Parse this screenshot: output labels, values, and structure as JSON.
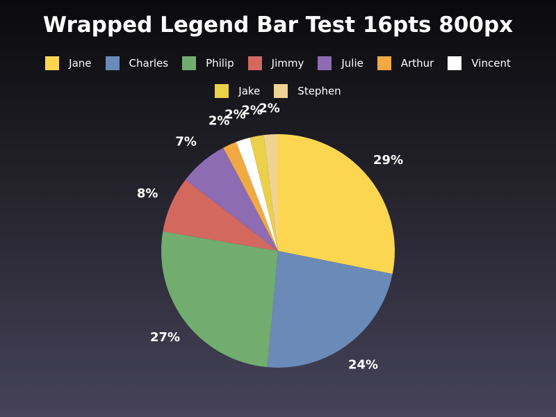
{
  "chart_data": {
    "type": "pie",
    "title": "Wrapped Legend Bar Test 16pts 800px",
    "legend_position": "top",
    "slices": [
      {
        "name": "Jane",
        "value": 29,
        "label": "29%",
        "color": "#fcd651"
      },
      {
        "name": "Charles",
        "value": 24,
        "label": "24%",
        "color": "#6a8ab8"
      },
      {
        "name": "Philip",
        "value": 27,
        "label": "27%",
        "color": "#72ac6e"
      },
      {
        "name": "Jimmy",
        "value": 8,
        "label": "8%",
        "color": "#d3685f"
      },
      {
        "name": "Julie",
        "value": 7,
        "label": "7%",
        "color": "#8d6cb3"
      },
      {
        "name": "Arthur",
        "value": 2,
        "label": "2%",
        "color": "#f1a944"
      },
      {
        "name": "Vincent",
        "value": 2,
        "label": "2%",
        "color": "#ffffff"
      },
      {
        "name": "Jake",
        "value": 2,
        "label": "2%",
        "color": "#ebd049"
      },
      {
        "name": "Stephen",
        "value": 2,
        "label": "2%",
        "color": "#f0d392"
      }
    ]
  }
}
